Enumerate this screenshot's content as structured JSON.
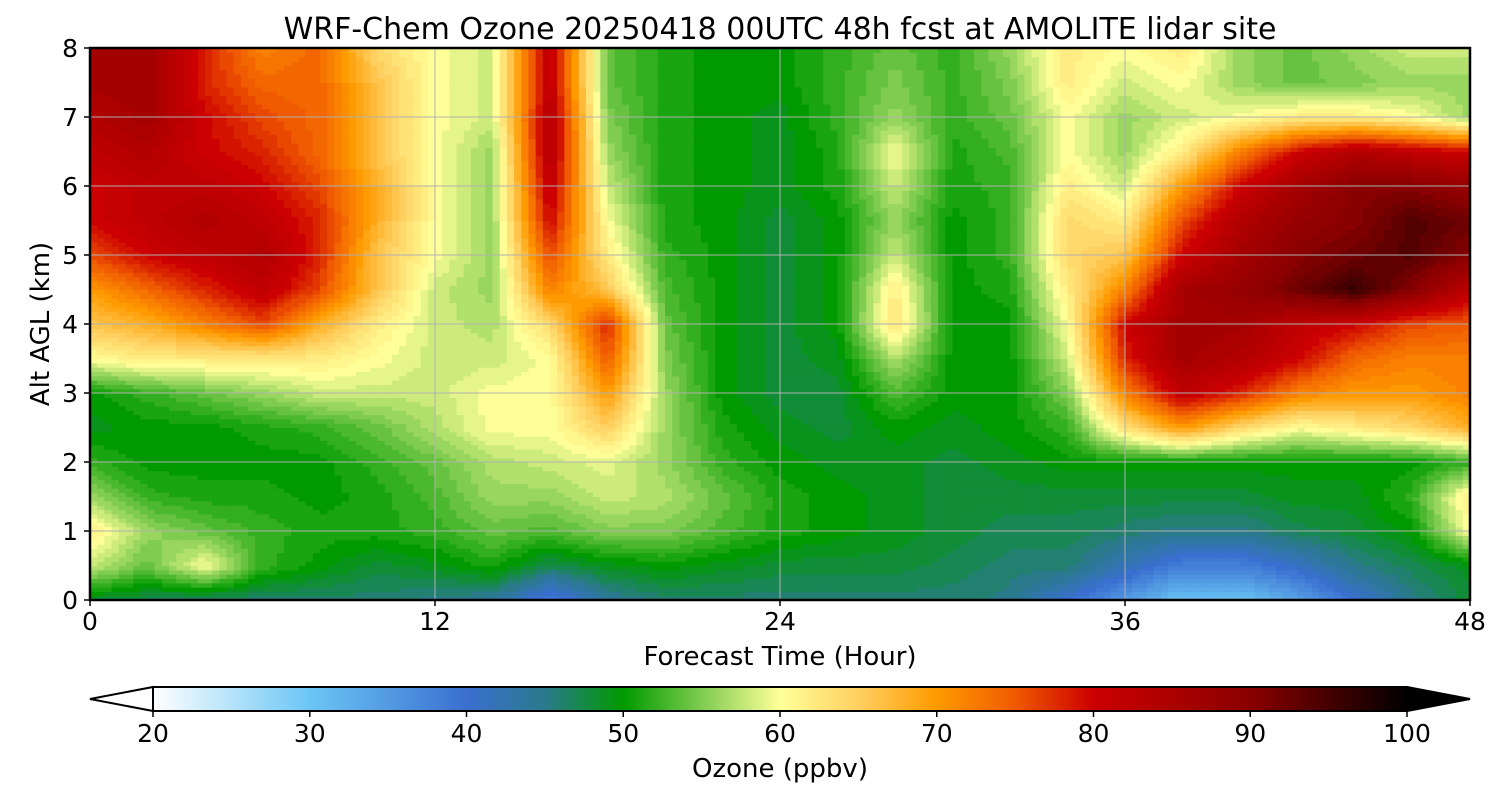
{
  "chart_data": {
    "type": "heatmap",
    "title": "WRF-Chem Ozone  20250418 00UTC 48h fcst at AMOLITE lidar site",
    "xlabel": "Forecast Time (Hour)",
    "ylabel": "Alt AGL (km)",
    "xlim": [
      0,
      48
    ],
    "ylim": [
      0,
      8
    ],
    "x_ticks": [
      "0",
      "12",
      "24",
      "36",
      "48"
    ],
    "y_ticks": [
      "0",
      "1",
      "2",
      "3",
      "4",
      "5",
      "6",
      "7",
      "8"
    ],
    "grid": true,
    "x": [
      0,
      2,
      4,
      6,
      8,
      10,
      12,
      14,
      16,
      18,
      20,
      22,
      24,
      26,
      28,
      30,
      32,
      34,
      36,
      38,
      40,
      42,
      44,
      46,
      48
    ],
    "y": [
      0,
      0.5,
      1,
      1.5,
      2,
      2.5,
      3,
      3.5,
      4,
      4.5,
      5,
      5.5,
      6,
      6.5,
      7,
      7.5,
      8
    ],
    "z": [
      [
        48,
        47,
        46,
        46,
        46,
        46,
        45,
        44,
        38,
        44,
        46,
        46,
        46,
        46,
        46,
        46,
        45,
        40,
        35,
        30,
        30,
        34,
        40,
        45,
        48
      ],
      [
        58,
        54,
        60,
        52,
        50,
        48,
        49,
        51,
        47,
        49,
        50,
        49,
        48,
        48,
        48,
        47,
        46,
        46,
        42,
        38,
        38,
        41,
        45,
        47,
        49
      ],
      [
        62,
        56,
        54,
        52,
        51,
        51,
        52,
        54,
        53,
        55,
        55,
        53,
        51,
        50,
        49,
        48,
        47,
        47,
        46,
        45,
        45,
        47,
        48,
        50,
        60
      ],
      [
        56,
        52,
        51,
        51,
        50,
        51,
        53,
        56,
        56,
        58,
        57,
        54,
        51,
        50,
        49,
        48,
        48,
        48,
        48,
        48,
        48,
        49,
        49,
        52,
        62
      ],
      [
        52,
        50,
        50,
        50,
        50,
        52,
        54,
        57,
        58,
        59,
        56,
        52,
        50,
        49,
        49,
        48,
        49,
        50,
        50,
        50,
        50,
        50,
        50,
        50,
        52
      ],
      [
        49,
        50,
        50,
        51,
        52,
        54,
        57,
        60,
        60,
        65,
        56,
        51,
        49,
        48,
        50,
        49,
        50,
        52,
        63,
        70,
        64,
        60,
        62,
        64,
        68
      ],
      [
        50,
        52,
        54,
        56,
        58,
        58,
        58,
        60,
        60,
        70,
        56,
        50,
        48,
        48,
        53,
        50,
        50,
        55,
        72,
        82,
        78,
        72,
        70,
        70,
        72
      ],
      [
        60,
        62,
        62,
        62,
        62,
        60,
        58,
        58,
        60,
        75,
        55,
        50,
        48,
        49,
        57,
        50,
        50,
        58,
        78,
        86,
        84,
        80,
        74,
        72,
        72
      ],
      [
        66,
        68,
        72,
        76,
        68,
        62,
        58,
        57,
        64,
        78,
        54,
        50,
        48,
        50,
        63,
        50,
        50,
        60,
        80,
        86,
        86,
        82,
        80,
        76,
        75
      ],
      [
        70,
        74,
        78,
        82,
        76,
        66,
        58,
        56,
        72,
        66,
        53,
        50,
        48,
        50,
        62,
        50,
        51,
        62,
        72,
        86,
        88,
        92,
        96,
        90,
        82
      ],
      [
        76,
        80,
        82,
        84,
        78,
        66,
        60,
        56,
        76,
        62,
        52,
        50,
        48,
        50,
        58,
        50,
        52,
        64,
        66,
        80,
        86,
        90,
        92,
        94,
        90
      ],
      [
        80,
        82,
        84,
        82,
        78,
        68,
        60,
        56,
        80,
        60,
        51,
        50,
        48,
        50,
        56,
        50,
        52,
        64,
        62,
        76,
        84,
        88,
        90,
        94,
        92
      ],
      [
        80,
        82,
        82,
        80,
        76,
        68,
        60,
        56,
        82,
        58,
        51,
        50,
        49,
        51,
        58,
        51,
        52,
        62,
        58,
        70,
        80,
        86,
        90,
        90,
        88
      ],
      [
        82,
        84,
        80,
        78,
        74,
        66,
        60,
        56,
        84,
        56,
        51,
        50,
        49,
        51,
        60,
        51,
        53,
        60,
        56,
        62,
        72,
        80,
        84,
        82,
        80
      ],
      [
        84,
        86,
        80,
        76,
        74,
        66,
        60,
        58,
        84,
        55,
        51,
        50,
        49,
        52,
        56,
        52,
        54,
        60,
        56,
        58,
        60,
        62,
        62,
        60,
        56
      ],
      [
        86,
        86,
        78,
        74,
        74,
        66,
        60,
        58,
        82,
        54,
        51,
        50,
        50,
        52,
        55,
        52,
        55,
        62,
        58,
        60,
        56,
        54,
        55,
        56,
        56
      ],
      [
        86,
        86,
        78,
        72,
        74,
        64,
        60,
        58,
        82,
        54,
        51,
        50,
        50,
        52,
        54,
        52,
        56,
        62,
        60,
        62,
        56,
        54,
        56,
        58,
        58
      ]
    ],
    "colorbar": {
      "label": "Ozone  (ppbv)",
      "ticks": [
        "20",
        "30",
        "40",
        "50",
        "60",
        "70",
        "80",
        "90",
        "100"
      ],
      "range": [
        20,
        100
      ],
      "extend": "both",
      "stops": [
        {
          "v": 20,
          "c": "#ffffff"
        },
        {
          "v": 30,
          "c": "#6bc6f5"
        },
        {
          "v": 40,
          "c": "#3a6fd0"
        },
        {
          "v": 45,
          "c": "#2a7a8c"
        },
        {
          "v": 50,
          "c": "#009a00"
        },
        {
          "v": 55,
          "c": "#7fcc50"
        },
        {
          "v": 60,
          "c": "#ffff99"
        },
        {
          "v": 65,
          "c": "#ffd060"
        },
        {
          "v": 70,
          "c": "#ff9a00"
        },
        {
          "v": 75,
          "c": "#f05a00"
        },
        {
          "v": 80,
          "c": "#cc0000"
        },
        {
          "v": 90,
          "c": "#8a0000"
        },
        {
          "v": 100,
          "c": "#000000"
        }
      ]
    }
  }
}
